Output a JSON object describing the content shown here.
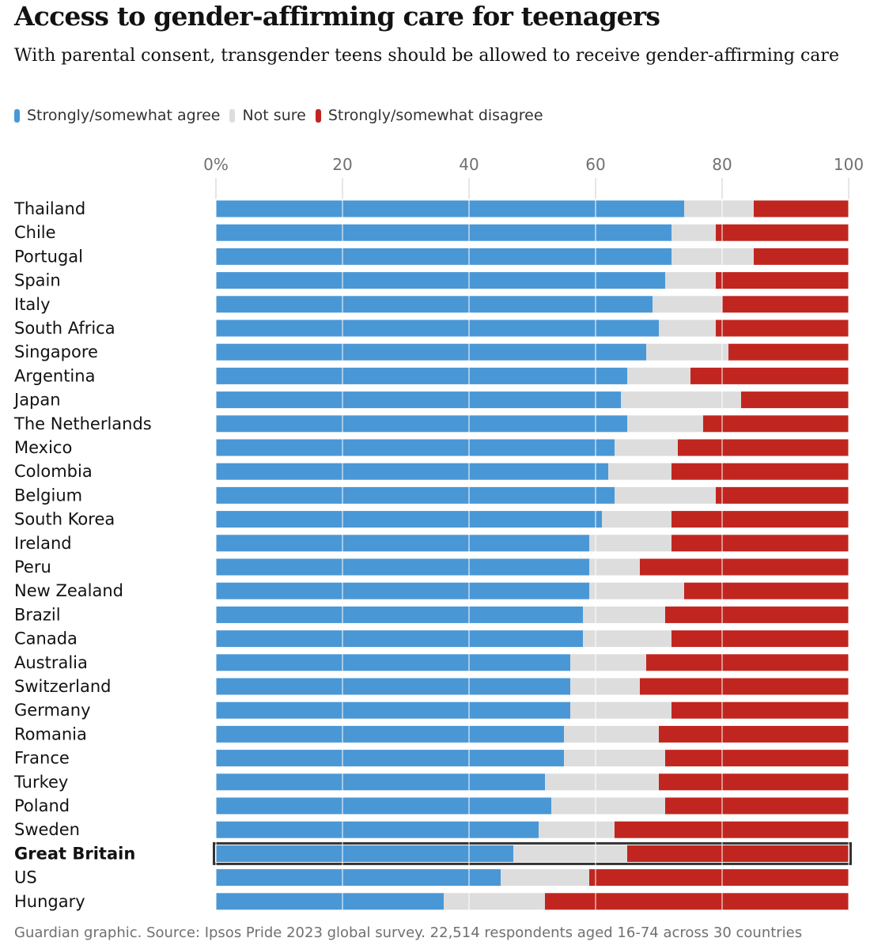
{
  "title": "Access to gender-affirming care for teenagers",
  "subtitle": "With parental consent, transgender teens should be allowed to receive gender-affirming care",
  "source": "Guardian graphic. Source: Ipsos Pride 2023 global survey. 22,514 respondents aged 16-74 across 30 countries",
  "colors": {
    "agree": "#4a97d6",
    "not_sure": "#dddddd",
    "disagree": "#c0261f",
    "highlight_border": "#333333",
    "gridline": "#ffffff"
  },
  "legend": [
    {
      "label": "Strongly/somewhat agree",
      "color": "#4a97d6"
    },
    {
      "label": "Not sure",
      "color": "#dddddd"
    },
    {
      "label": "Strongly/somewhat disagree",
      "color": "#c0261f"
    }
  ],
  "chart_data": {
    "type": "bar",
    "orientation": "horizontal",
    "stacked": true,
    "xlim": [
      0,
      100
    ],
    "xticks": [
      0,
      20,
      40,
      60,
      80,
      100
    ],
    "xtick_labels": [
      "0%",
      "20",
      "40",
      "60",
      "80",
      "100"
    ],
    "grid": true,
    "highlight": "Great Britain",
    "categories": [
      "Thailand",
      "Chile",
      "Portugal",
      "Spain",
      "Italy",
      "South Africa",
      "Singapore",
      "Argentina",
      "Japan",
      "The Netherlands",
      "Mexico",
      "Colombia",
      "Belgium",
      "South Korea",
      "Ireland",
      "Peru",
      "New Zealand",
      "Brazil",
      "Canada",
      "Australia",
      "Switzerland",
      "Germany",
      "Romania",
      "France",
      "Turkey",
      "Poland",
      "Sweden",
      "Great Britain",
      "US",
      "Hungary"
    ],
    "series": [
      {
        "name": "Strongly/somewhat agree",
        "values": [
          74,
          72,
          72,
          71,
          69,
          70,
          68,
          65,
          64,
          65,
          63,
          62,
          63,
          61,
          59,
          59,
          59,
          58,
          58,
          56,
          56,
          56,
          55,
          55,
          52,
          53,
          51,
          47,
          45,
          36
        ]
      },
      {
        "name": "Not sure",
        "values": [
          11,
          7,
          13,
          8,
          11,
          9,
          13,
          10,
          19,
          12,
          10,
          10,
          16,
          11,
          13,
          8,
          15,
          13,
          14,
          12,
          11,
          16,
          15,
          16,
          18,
          18,
          12,
          18,
          14,
          16
        ]
      },
      {
        "name": "Strongly/somewhat disagree",
        "values": [
          15,
          21,
          15,
          21,
          20,
          21,
          19,
          25,
          17,
          23,
          27,
          28,
          21,
          28,
          28,
          33,
          26,
          29,
          28,
          32,
          33,
          28,
          30,
          29,
          30,
          29,
          37,
          35,
          41,
          48
        ]
      }
    ]
  }
}
